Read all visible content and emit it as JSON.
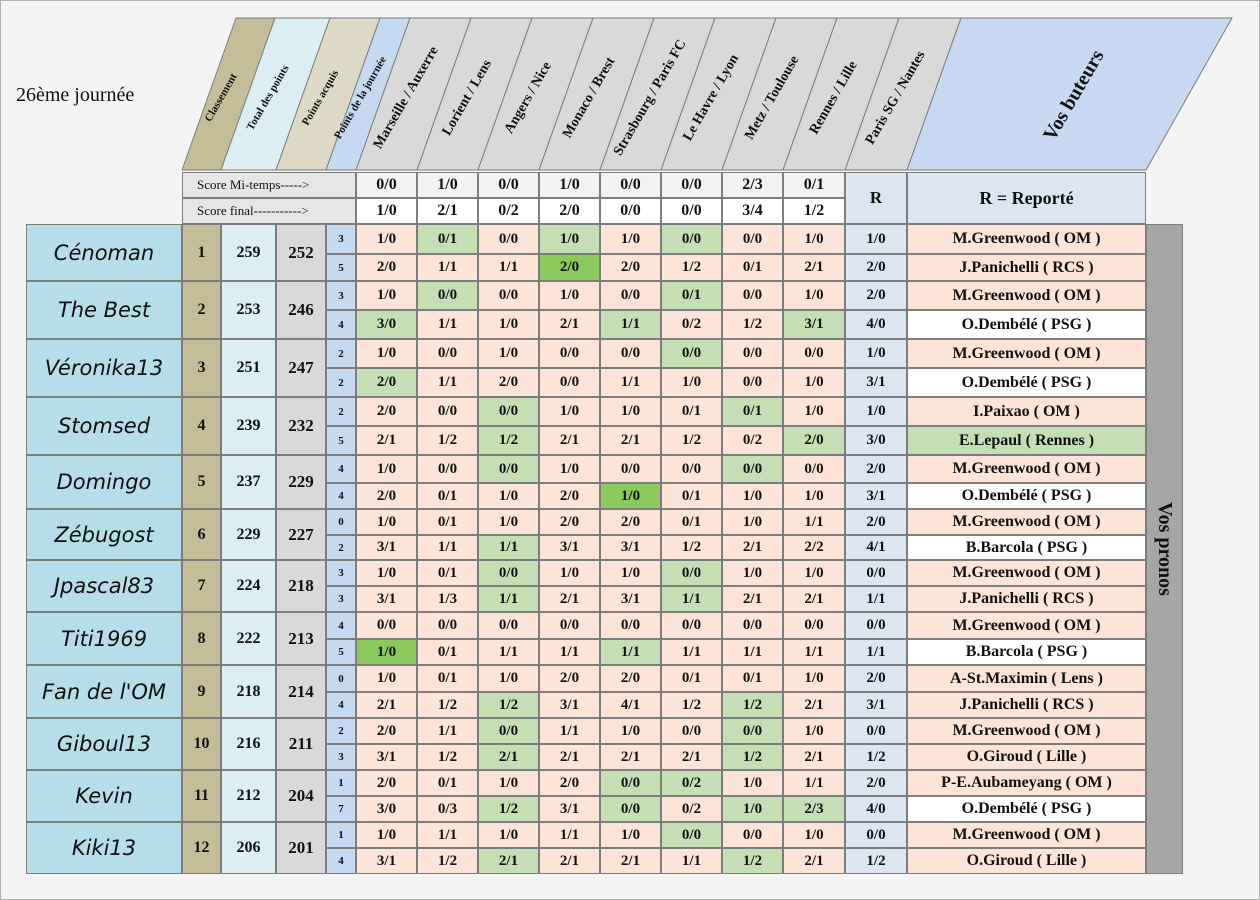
{
  "title": "26ème journée",
  "headers": [
    "Classement",
    "Total des points",
    "Points acquis",
    "Points de la journée"
  ],
  "matches": [
    "Marseille / Auxerre",
    "Lorient / Lens",
    "Angers / Nice",
    "Monaco / Brest",
    "Strasbourg / Paris FC",
    "Le Havre / Lyon",
    "Metz / Toulouse",
    "Rennes / Lille",
    "Paris SG / Nantes"
  ],
  "scorers_header": "Vos buteurs",
  "labels": {
    "halftime": "Score Mi-temps----->",
    "final": "Score final----------->",
    "R": "R",
    "R_note": "R = Reporté",
    "vos_pronos": "Vos pronos"
  },
  "results": {
    "halftime": [
      "0/0",
      "1/0",
      "0/0",
      "1/0",
      "0/0",
      "0/0",
      "2/3",
      "0/1"
    ],
    "final": [
      "1/0",
      "2/1",
      "0/2",
      "2/0",
      "0/0",
      "0/0",
      "3/4",
      "1/2"
    ]
  },
  "players": [
    {
      "name": "Cénoman",
      "rank": "1",
      "total": "259",
      "acquis": "252",
      "rows": [
        {
          "pts": "3",
          "preds": [
            "1/0",
            "0/1",
            "0/0",
            "1/0",
            "1/0",
            "0/0",
            "0/0",
            "1/0"
          ],
          "r": "1/0",
          "scorer": "M.Greenwood ( OM )"
        },
        {
          "pts": "5",
          "preds": [
            "2/0",
            "1/1",
            "1/1",
            "2/0",
            "2/0",
            "1/2",
            "0/1",
            "2/1"
          ],
          "r": "2/0",
          "scorer": "J.Panichelli ( RCS )"
        }
      ]
    },
    {
      "name": "The Best",
      "rank": "2",
      "total": "253",
      "acquis": "246",
      "rows": [
        {
          "pts": "3",
          "preds": [
            "1/0",
            "0/0",
            "0/0",
            "1/0",
            "0/0",
            "0/1",
            "0/0",
            "1/0"
          ],
          "r": "2/0",
          "scorer": "M.Greenwood ( OM )"
        },
        {
          "pts": "4",
          "preds": [
            "3/0",
            "1/1",
            "1/0",
            "2/1",
            "1/1",
            "0/2",
            "1/2",
            "3/1"
          ],
          "r": "4/0",
          "scorer": "O.Dembélé ( PSG )"
        }
      ]
    },
    {
      "name": "Véronika13",
      "rank": "3",
      "total": "251",
      "acquis": "247",
      "rows": [
        {
          "pts": "2",
          "preds": [
            "1/0",
            "0/0",
            "1/0",
            "0/0",
            "0/0",
            "0/0",
            "0/0",
            "0/0"
          ],
          "r": "1/0",
          "scorer": "M.Greenwood ( OM )"
        },
        {
          "pts": "2",
          "preds": [
            "2/0",
            "1/1",
            "2/0",
            "0/0",
            "1/1",
            "1/0",
            "0/0",
            "1/0"
          ],
          "r": "3/1",
          "scorer": "O.Dembélé ( PSG )"
        }
      ]
    },
    {
      "name": "Stomsed",
      "rank": "4",
      "total": "239",
      "acquis": "232",
      "rows": [
        {
          "pts": "2",
          "preds": [
            "2/0",
            "0/0",
            "0/0",
            "1/0",
            "1/0",
            "0/1",
            "0/1",
            "1/0"
          ],
          "r": "1/0",
          "scorer": "I.Paixao ( OM )"
        },
        {
          "pts": "5",
          "preds": [
            "2/1",
            "1/2",
            "1/2",
            "2/1",
            "2/1",
            "1/2",
            "0/2",
            "2/0"
          ],
          "r": "3/0",
          "scorer": "E.Lepaul ( Rennes )"
        }
      ]
    },
    {
      "name": "Domingo",
      "rank": "5",
      "total": "237",
      "acquis": "229",
      "rows": [
        {
          "pts": "4",
          "preds": [
            "1/0",
            "0/0",
            "0/0",
            "1/0",
            "0/0",
            "0/0",
            "0/0",
            "0/0"
          ],
          "r": "2/0",
          "scorer": "M.Greenwood ( OM )"
        },
        {
          "pts": "4",
          "preds": [
            "2/0",
            "0/1",
            "1/0",
            "2/0",
            "1/0",
            "0/1",
            "1/0",
            "1/0"
          ],
          "r": "3/1",
          "scorer": "O.Dembélé ( PSG )"
        }
      ]
    },
    {
      "name": "Zébugost",
      "rank": "6",
      "total": "229",
      "acquis": "227",
      "rows": [
        {
          "pts": "0",
          "preds": [
            "1/0",
            "0/1",
            "1/0",
            "2/0",
            "2/0",
            "0/1",
            "1/0",
            "1/1"
          ],
          "r": "2/0",
          "scorer": "M.Greenwood ( OM )"
        },
        {
          "pts": "2",
          "preds": [
            "3/1",
            "1/1",
            "1/1",
            "3/1",
            "3/1",
            "1/2",
            "2/1",
            "2/2"
          ],
          "r": "4/1",
          "scorer": "B.Barcola ( PSG )"
        }
      ]
    },
    {
      "name": "Jpascal83",
      "rank": "7",
      "total": "224",
      "acquis": "218",
      "rows": [
        {
          "pts": "3",
          "preds": [
            "1/0",
            "0/1",
            "0/0",
            "1/0",
            "1/0",
            "0/0",
            "1/0",
            "1/0"
          ],
          "r": "0/0",
          "scorer": "M.Greenwood ( OM )"
        },
        {
          "pts": "3",
          "preds": [
            "3/1",
            "1/3",
            "1/1",
            "2/1",
            "3/1",
            "1/1",
            "2/1",
            "2/1"
          ],
          "r": "1/1",
          "scorer": "J.Panichelli ( RCS )"
        }
      ]
    },
    {
      "name": "Titi1969",
      "rank": "8",
      "total": "222",
      "acquis": "213",
      "rows": [
        {
          "pts": "4",
          "preds": [
            "0/0",
            "0/0",
            "0/0",
            "0/0",
            "0/0",
            "0/0",
            "0/0",
            "0/0"
          ],
          "r": "0/0",
          "scorer": "M.Greenwood ( OM )"
        },
        {
          "pts": "5",
          "preds": [
            "1/0",
            "0/1",
            "1/1",
            "1/1",
            "1/1",
            "1/1",
            "1/1",
            "1/1"
          ],
          "r": "1/1",
          "scorer": "B.Barcola ( PSG )"
        }
      ]
    },
    {
      "name": "Fan de l'OM",
      "rank": "9",
      "total": "218",
      "acquis": "214",
      "rows": [
        {
          "pts": "0",
          "preds": [
            "1/0",
            "0/1",
            "1/0",
            "2/0",
            "2/0",
            "0/1",
            "0/1",
            "1/0"
          ],
          "r": "2/0",
          "scorer": "A-St.Maximin ( Lens )"
        },
        {
          "pts": "4",
          "preds": [
            "2/1",
            "1/2",
            "1/2",
            "3/1",
            "4/1",
            "1/2",
            "1/2",
            "2/1"
          ],
          "r": "3/1",
          "scorer": "J.Panichelli ( RCS )"
        }
      ]
    },
    {
      "name": "Giboul13",
      "rank": "10",
      "total": "216",
      "acquis": "211",
      "rows": [
        {
          "pts": "2",
          "preds": [
            "2/0",
            "1/1",
            "0/0",
            "1/1",
            "1/0",
            "0/0",
            "0/0",
            "1/0"
          ],
          "r": "0/0",
          "scorer": "M.Greenwood ( OM )"
        },
        {
          "pts": "3",
          "preds": [
            "3/1",
            "1/2",
            "2/1",
            "2/1",
            "2/1",
            "2/1",
            "1/2",
            "2/1"
          ],
          "r": "1/2",
          "scorer": "O.Giroud ( Lille )"
        }
      ]
    },
    {
      "name": "Kevin",
      "rank": "11",
      "total": "212",
      "acquis": "204",
      "rows": [
        {
          "pts": "1",
          "preds": [
            "2/0",
            "0/1",
            "1/0",
            "2/0",
            "0/0",
            "0/2",
            "1/0",
            "1/1"
          ],
          "r": "2/0",
          "scorer": "P-E.Aubameyang ( OM )"
        },
        {
          "pts": "7",
          "preds": [
            "3/0",
            "0/3",
            "1/2",
            "3/1",
            "0/0",
            "0/2",
            "1/0",
            "2/3"
          ],
          "r": "4/0",
          "scorer": "O.Dembélé ( PSG )"
        }
      ]
    },
    {
      "name": "Kiki13",
      "rank": "12",
      "total": "206",
      "acquis": "201",
      "rows": [
        {
          "pts": "1",
          "preds": [
            "1/0",
            "1/1",
            "1/0",
            "1/1",
            "1/0",
            "0/0",
            "0/0",
            "1/0"
          ],
          "r": "0/0",
          "scorer": "M.Greenwood ( OM )"
        },
        {
          "pts": "4",
          "preds": [
            "3/1",
            "1/2",
            "2/1",
            "2/1",
            "2/1",
            "1/1",
            "1/2",
            "2/1"
          ],
          "r": "1/2",
          "scorer": "O.Giroud ( Lille )"
        }
      ]
    }
  ],
  "colors": {
    "pink": "#fde4d6",
    "green": "#c4dfb4",
    "dark_green": "#8cc95c",
    "white": "#ffffff"
  },
  "cell_colors": [
    [
      "pgpgpgpp",
      "pppdpppp"
    ],
    [
      "pgpppgpp",
      "gpppgppg"
    ],
    [
      "pppppgpp",
      "gppppppp"
    ],
    [
      "ppgpppgp",
      "ppgppppg"
    ],
    [
      "ppgpppgp",
      "ppppdppp"
    ],
    [
      "pppppppp",
      "ppgppppp"
    ],
    [
      "ppgppgpp",
      "ppgppgpp"
    ],
    [
      "pppppppp",
      "dpppgppp"
    ],
    [
      "pppppppp",
      "ppgpppgp"
    ],
    [
      "ppgpppgp",
      "ppgpppgp"
    ],
    [
      "ppppggpp",
      "ppgpgpgg"
    ],
    [
      "pppppgpp",
      "ppgpppgp"
    ]
  ],
  "scorer_colors": [
    [
      "p",
      "p"
    ],
    [
      "p",
      "w"
    ],
    [
      "p",
      "w"
    ],
    [
      "p",
      "g"
    ],
    [
      "p",
      "w"
    ],
    [
      "p",
      "w"
    ],
    [
      "p",
      "p"
    ],
    [
      "p",
      "w"
    ],
    [
      "p",
      "p"
    ],
    [
      "p",
      "p"
    ],
    [
      "p",
      "w"
    ],
    [
      "p",
      "p"
    ]
  ]
}
